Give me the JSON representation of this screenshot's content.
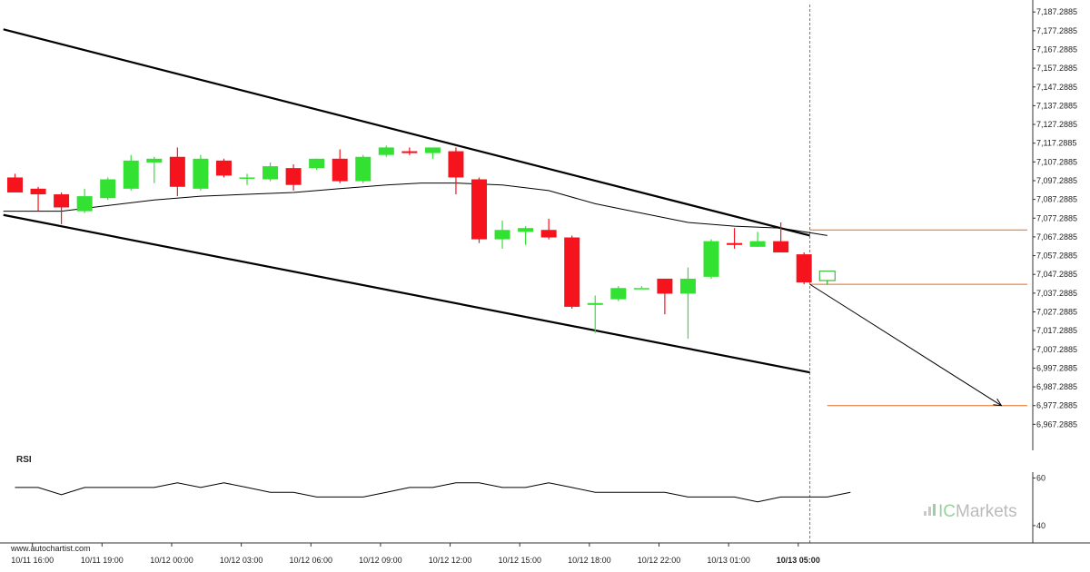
{
  "chart_data": [
    {
      "type": "candlestick",
      "title": "",
      "ylim": [
        6957.2885,
        7190.2885
      ],
      "y_ticks": [
        "7,187.2885",
        "7,177.2885",
        "7,167.2885",
        "7,157.2885",
        "7,147.2885",
        "7,137.2885",
        "7,127.2885",
        "7,117.2885",
        "7,107.2885",
        "7,097.2885",
        "7,087.2885",
        "7,077.2885",
        "7,067.2885",
        "7,057.2885",
        "7,047.2885",
        "7,037.2885",
        "7,027.2885",
        "7,017.2885",
        "7,007.2885",
        "6,997.2885",
        "6,987.2885",
        "6,977.2885",
        "6,967.2885"
      ],
      "y_tick_values": [
        7187.2885,
        7177.2885,
        7167.2885,
        7157.2885,
        7147.2885,
        7137.2885,
        7127.2885,
        7117.2885,
        7107.2885,
        7097.2885,
        7087.2885,
        7077.2885,
        7067.2885,
        7057.2885,
        7047.2885,
        7037.2885,
        7027.2885,
        7017.2885,
        7007.2885,
        6997.2885,
        6987.2885,
        6977.2885,
        6967.2885
      ],
      "x_ticks": [
        {
          "label": "10/11 16:00",
          "index": 0.75
        },
        {
          "label": "10/11 19:00",
          "index": 3.75
        },
        {
          "label": "10/12 00:00",
          "index": 6.75
        },
        {
          "label": "10/12 03:00",
          "index": 9.75
        },
        {
          "label": "10/12 06:00",
          "index": 12.75
        },
        {
          "label": "10/12 09:00",
          "index": 15.75
        },
        {
          "label": "10/12 12:00",
          "index": 18.75
        },
        {
          "label": "10/12 15:00",
          "index": 21.75
        },
        {
          "label": "10/12 18:00",
          "index": 24.75
        },
        {
          "label": "10/12 22:00",
          "index": 27.75
        },
        {
          "label": "10/13 01:00",
          "index": 30.75
        },
        {
          "label": "10/13 05:00",
          "index": 33.75,
          "bold": true
        }
      ],
      "candles": [
        {
          "o": 7099,
          "h": 7101,
          "l": 7091,
          "c": 7091
        },
        {
          "o": 7093,
          "h": 7094,
          "l": 7081,
          "c": 7090
        },
        {
          "o": 7090,
          "h": 7091,
          "l": 7074,
          "c": 7083
        },
        {
          "o": 7081,
          "h": 7093,
          "l": 7080,
          "c": 7089
        },
        {
          "o": 7088,
          "h": 7099,
          "l": 7087,
          "c": 7098
        },
        {
          "o": 7093,
          "h": 7111,
          "l": 7092,
          "c": 7108
        },
        {
          "o": 7107,
          "h": 7110,
          "l": 7096,
          "c": 7109
        },
        {
          "o": 7110,
          "h": 7115,
          "l": 7089,
          "c": 7094
        },
        {
          "o": 7093,
          "h": 7111,
          "l": 7092,
          "c": 7109
        },
        {
          "o": 7108,
          "h": 7109,
          "l": 7099,
          "c": 7100
        },
        {
          "o": 7099,
          "h": 7101,
          "l": 7095,
          "c": 7099
        },
        {
          "o": 7098,
          "h": 7107,
          "l": 7097,
          "c": 7105
        },
        {
          "o": 7104,
          "h": 7106,
          "l": 7092,
          "c": 7095
        },
        {
          "o": 7104,
          "h": 7109,
          "l": 7103,
          "c": 7109
        },
        {
          "o": 7109,
          "h": 7114,
          "l": 7096,
          "c": 7097
        },
        {
          "o": 7097,
          "h": 7111,
          "l": 7096,
          "c": 7110
        },
        {
          "o": 7111,
          "h": 7116,
          "l": 7110,
          "c": 7115
        },
        {
          "o": 7113,
          "h": 7115,
          "l": 7111,
          "c": 7112
        },
        {
          "o": 7112,
          "h": 7114,
          "l": 7109,
          "c": 7115
        },
        {
          "o": 7113,
          "h": 7115,
          "l": 7090,
          "c": 7099
        },
        {
          "o": 7098,
          "h": 7099,
          "l": 7064,
          "c": 7066
        },
        {
          "o": 7066,
          "h": 7076,
          "l": 7061,
          "c": 7071
        },
        {
          "o": 7070,
          "h": 7073,
          "l": 7063,
          "c": 7072
        },
        {
          "o": 7071,
          "h": 7077,
          "l": 7066,
          "c": 7067
        },
        {
          "o": 7067,
          "h": 7068,
          "l": 7029,
          "c": 7030
        },
        {
          "o": 7031,
          "h": 7036,
          "l": 7016,
          "c": 7032
        },
        {
          "o": 7034,
          "h": 7041,
          "l": 7033,
          "c": 7040
        },
        {
          "o": 7040,
          "h": 7041,
          "l": 7040,
          "c": 7040
        },
        {
          "o": 7045,
          "h": 7045,
          "l": 7026,
          "c": 7037
        },
        {
          "o": 7037,
          "h": 7051,
          "l": 7013,
          "c": 7045
        },
        {
          "o": 7046,
          "h": 7066,
          "l": 7045,
          "c": 7065
        },
        {
          "o": 7064,
          "h": 7072,
          "l": 7061,
          "c": 7063
        },
        {
          "o": 7062,
          "h": 7070,
          "l": 7062,
          "c": 7065
        },
        {
          "o": 7065,
          "h": 7075,
          "l": 7059,
          "c": 7059
        },
        {
          "o": 7058,
          "h": 7059,
          "l": 7042,
          "c": 7043
        },
        {
          "o": 7044,
          "h": 7049,
          "l": 7042,
          "c": 7049,
          "outline": true
        }
      ],
      "moving_average": [
        {
          "index": -0.5,
          "value": 7081
        },
        {
          "index": 2,
          "value": 7081
        },
        {
          "index": 4,
          "value": 7084
        },
        {
          "index": 6,
          "value": 7087
        },
        {
          "index": 8,
          "value": 7089
        },
        {
          "index": 10,
          "value": 7090
        },
        {
          "index": 12,
          "value": 7091
        },
        {
          "index": 14,
          "value": 7093
        },
        {
          "index": 16,
          "value": 7095
        },
        {
          "index": 17.5,
          "value": 7096
        },
        {
          "index": 19,
          "value": 7096
        },
        {
          "index": 21,
          "value": 7095
        },
        {
          "index": 23,
          "value": 7092
        },
        {
          "index": 25,
          "value": 7085
        },
        {
          "index": 27,
          "value": 7080
        },
        {
          "index": 29,
          "value": 7075
        },
        {
          "index": 31,
          "value": 7073
        },
        {
          "index": 33,
          "value": 7072
        },
        {
          "index": 35,
          "value": 7068
        }
      ],
      "channel": {
        "upper": [
          {
            "index": -0.5,
            "value": 7178
          },
          {
            "index": 34.25,
            "value": 7068
          }
        ],
        "lower": [
          {
            "index": -0.5,
            "value": 7079
          },
          {
            "index": 34.25,
            "value": 6995
          }
        ]
      },
      "levels": [
        {
          "value": 7071,
          "from_index": 34.25,
          "to_index": 45.5,
          "color": "#e46a1e"
        },
        {
          "value": 7042,
          "from_index": 34.25,
          "to_index": 45.5,
          "color": "#e46a1e"
        },
        {
          "value": 6977.2885,
          "from_index": 35,
          "to_index": 45.5,
          "color": "#e46a1e"
        }
      ],
      "forecast_arrow": {
        "from": {
          "index": 34.25,
          "value": 7042
        },
        "to": {
          "index": 42.5,
          "value": 6977.2885
        }
      },
      "current_time_index": 34.25,
      "colors": {
        "up": "#33e133",
        "down": "#f5141e",
        "outline": "#22aa22",
        "line": "#000000",
        "level": "#e46a1e",
        "dashed": "#777777"
      }
    },
    {
      "type": "line",
      "title": "RSI",
      "ylim": [
        35,
        72
      ],
      "y_ticks": [
        "60",
        "40"
      ],
      "y_tick_values": [
        60,
        40
      ],
      "values": [
        56,
        56,
        53,
        56,
        56,
        56,
        56,
        58,
        56,
        58,
        56,
        54,
        54,
        52,
        52,
        52,
        54,
        56,
        56,
        58,
        58,
        56,
        56,
        58,
        56,
        54,
        54,
        54,
        54,
        52,
        52,
        52,
        50,
        52,
        52,
        52,
        54
      ]
    }
  ],
  "watermark": "www.autochartist.com",
  "brand": {
    "prefix": "IC",
    "name": "Markets"
  }
}
